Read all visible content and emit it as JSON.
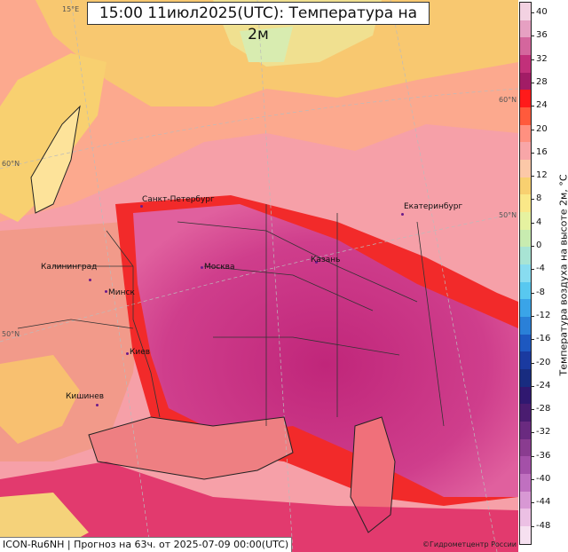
{
  "title": "15:00 11июл2025(UTC): Температура на 2м",
  "footer": {
    "model_info": "ICON-Ru6NH | Прогноз на  63ч. от 2025-07-09 00:00(UTC)",
    "credit": "©Гидрометцентр России"
  },
  "colorbar": {
    "label": "Температура воздуха на высоте 2м, °С",
    "ticks": [
      "40",
      "36",
      "32",
      "28",
      "24",
      "20",
      "16",
      "12",
      "8",
      "4",
      "0",
      "-4",
      "-8",
      "-12",
      "-16",
      "-20",
      "-24",
      "-28",
      "-32",
      "-36",
      "-40",
      "-44",
      "-48"
    ],
    "colors": [
      "#f3d2e2",
      "#e6a0c2",
      "#d4669d",
      "#c2307a",
      "#a21c66",
      "#ff1a1a",
      "#ff5a3c",
      "#ff9080",
      "#f8a6a8",
      "#fcc8a8",
      "#f8d070",
      "#fae888",
      "#e6f2a0",
      "#c8ecb0",
      "#a8e4d4",
      "#88dcf0",
      "#58c8f0",
      "#3aa4e8",
      "#2a80d8",
      "#1d58c0",
      "#1a3aa0",
      "#182c80",
      "#301870",
      "#4a1c70",
      "#6a2a80",
      "#8a3c90",
      "#a450a8",
      "#c070c0",
      "#d898d4",
      "#ecc0e4",
      "#f6e0f0"
    ]
  },
  "cities": [
    "Санкт-Петербург",
    "Москва",
    "Казань",
    "Екатеринбург",
    "Калининград",
    "Минск",
    "Киев",
    "Кишинев"
  ],
  "latitude_labels": [
    "60°N",
    "50°N",
    "60°N",
    "50°N"
  ],
  "longitude_labels": [
    "15°E"
  ]
}
